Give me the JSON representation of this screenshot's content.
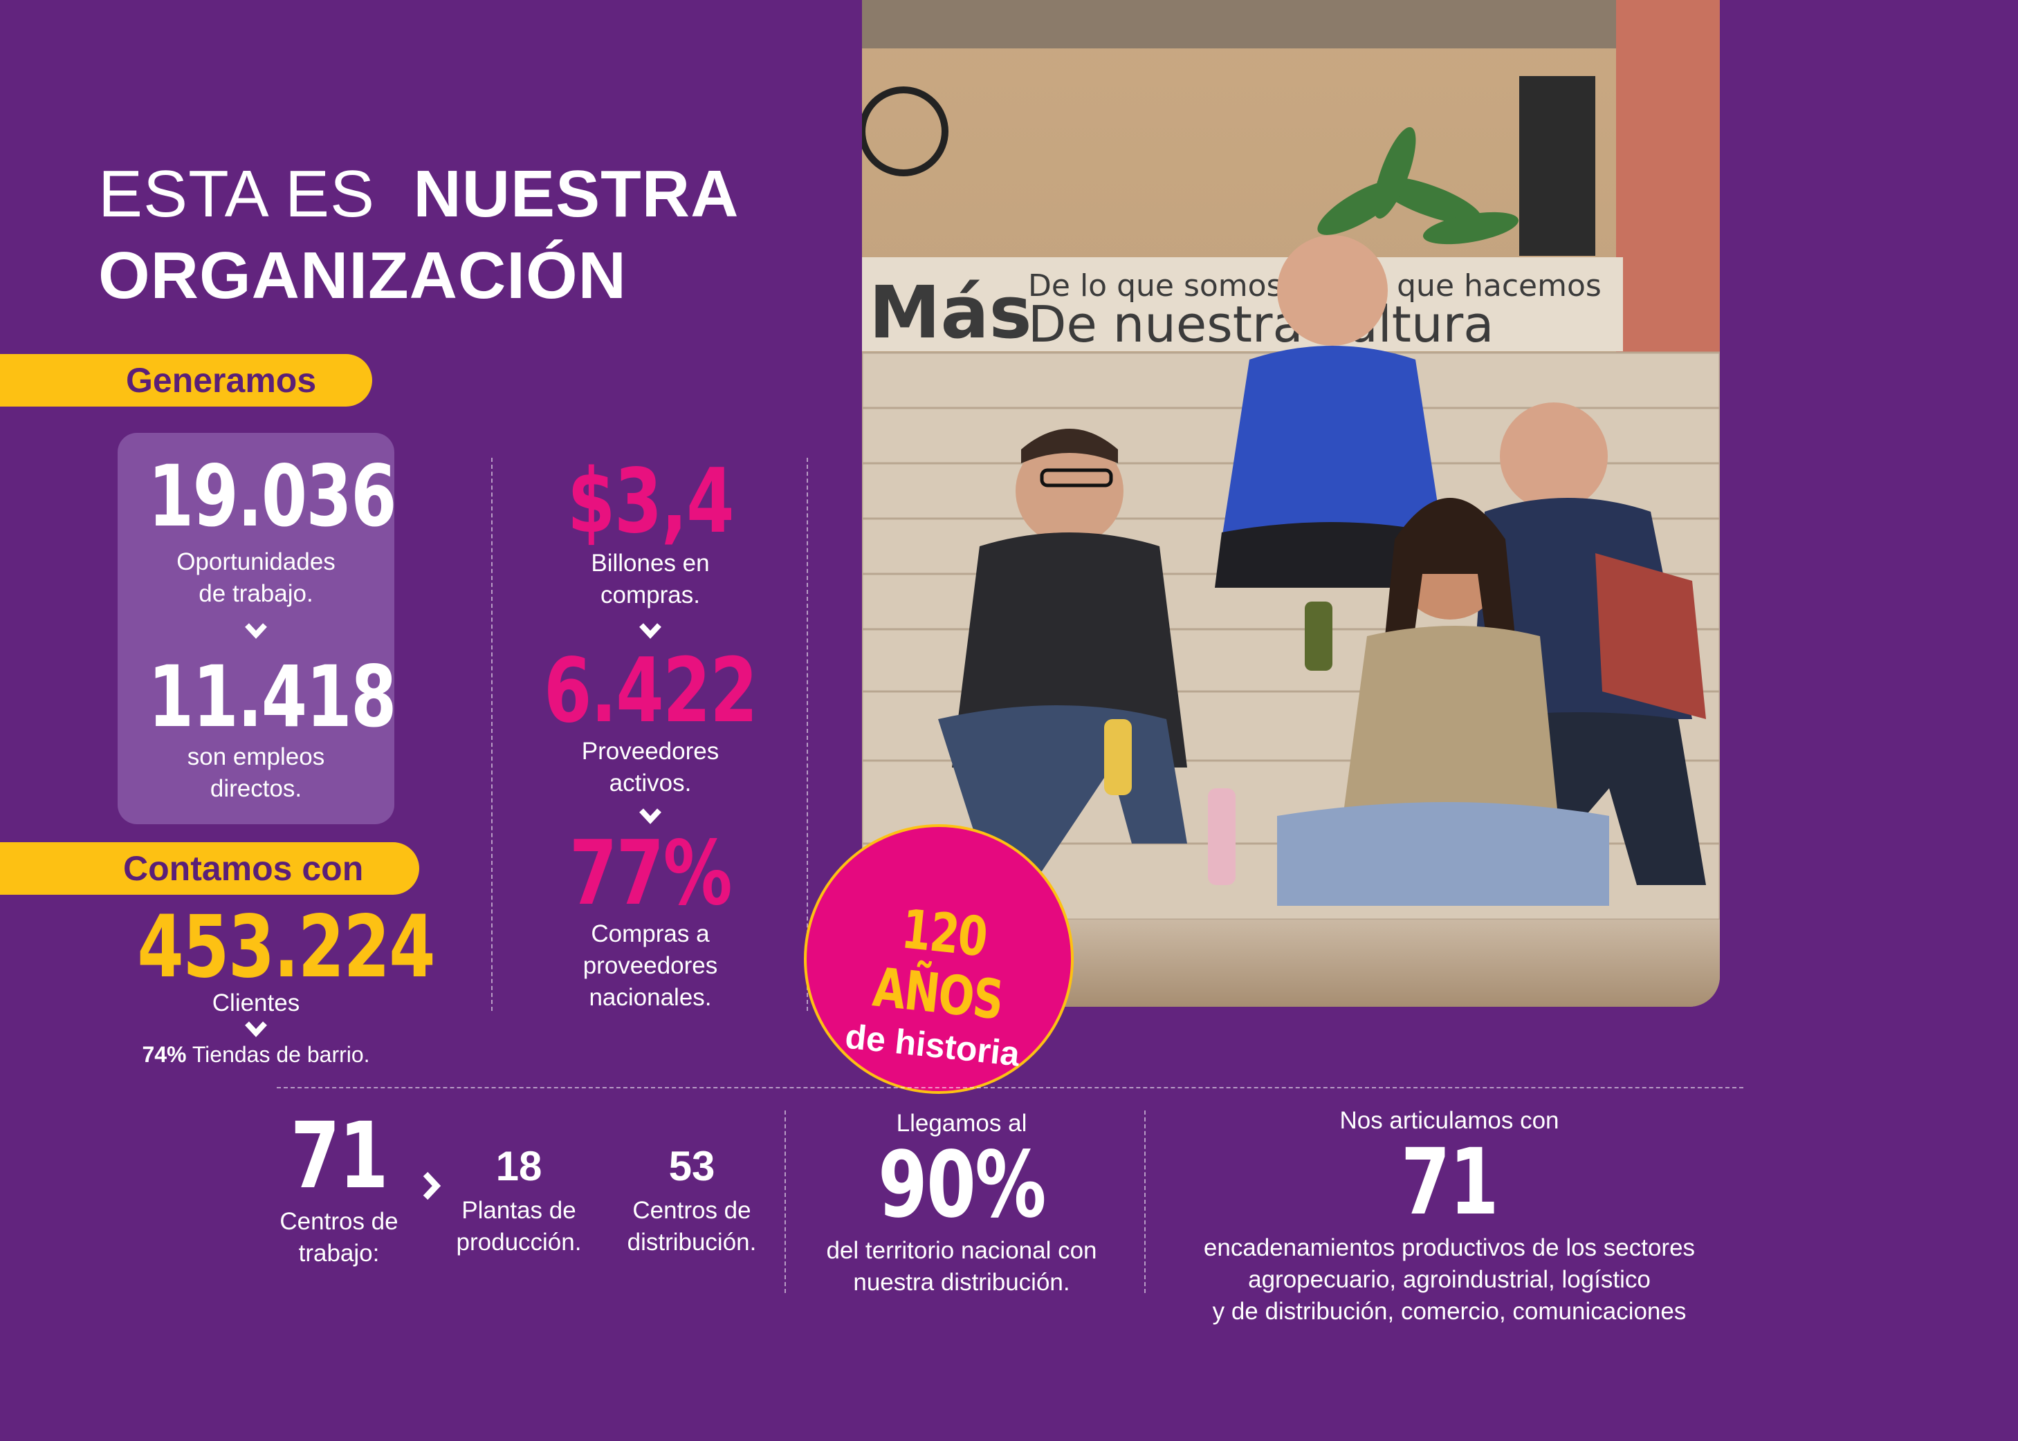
{
  "title": {
    "light": "ESTA ES",
    "bold_1": "NUESTRA",
    "bold_2": "ORGANIZACIÓN"
  },
  "generamos": {
    "label": "Generamos",
    "jobs_value": "19.036",
    "jobs_label_1": "Oportunidades",
    "jobs_label_2": "de trabajo.",
    "direct_value": "11.418",
    "direct_label_1": "son empleos",
    "direct_label_2": "directos."
  },
  "contamos": {
    "label": "Contamos con",
    "clients_value": "453.224",
    "clients_label": "Clientes",
    "stores_pct": "74%",
    "stores_label": "Tiendas de barrio."
  },
  "purchases": {
    "value": "$3,4",
    "label_1": "Billones en",
    "label_2": "compras.",
    "suppliers_value": "6.422",
    "suppliers_label_1": "Proveedores",
    "suppliers_label_2": "activos.",
    "national_value": "77%",
    "national_label_1": "Compras a",
    "national_label_2": "proveedores",
    "national_label_3": "nacionales."
  },
  "photo_sign": {
    "line1_big": "Más",
    "line1_small": "De lo que somos",
    "line1_small_2": "lo que hacemos",
    "line2": "De nuestra cultura"
  },
  "badge": {
    "line1": "120 AÑOS",
    "line2": "de historia"
  },
  "centers": {
    "total_value": "71",
    "total_label_1": "Centros de",
    "total_label_2": "trabajo:",
    "plants_value": "18",
    "plants_label_1": "Plantas de",
    "plants_label_2": "producción.",
    "dist_value": "53",
    "dist_label_1": "Centros de",
    "dist_label_2": "distribución."
  },
  "coverage": {
    "intro": "Llegamos al",
    "value": "90%",
    "label_1": "del territorio nacional con",
    "label_2": "nuestra distribución."
  },
  "chains": {
    "intro": "Nos articulamos con",
    "value": "71",
    "label_1": "encadenamientos productivos de los sectores",
    "label_2": "agropecuario, agroindustrial, logístico",
    "label_3": "y de distribución, comercio, comunicaciones"
  },
  "colors": {
    "background": "#62247e",
    "accent_yellow": "#fdc113",
    "accent_pink": "#e8117f"
  }
}
